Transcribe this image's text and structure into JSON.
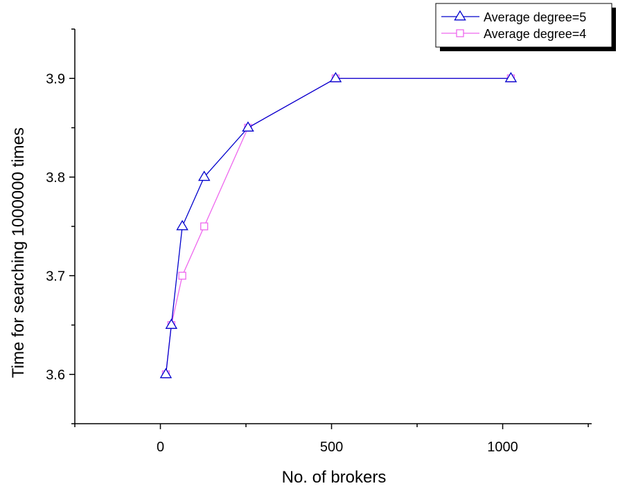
{
  "chart_data": {
    "type": "line",
    "title": "",
    "xlabel": "No. of brokers",
    "ylabel": "Time for searching 1000000 times",
    "xlim": [
      -250,
      1260
    ],
    "ylim": [
      3.55,
      3.95
    ],
    "xticks": [
      0,
      500,
      1000
    ],
    "xtick_labels": [
      "0",
      "500",
      "1000"
    ],
    "yticks": [
      3.6,
      3.7,
      3.8,
      3.9
    ],
    "ytick_labels": [
      "3.6",
      "3.7",
      "3.8",
      "3.9"
    ],
    "grid": false,
    "legend_position": "top-right",
    "series": [
      {
        "name": "Average degree=5",
        "color": "#0000cc",
        "marker": "triangle",
        "x": [
          16,
          32,
          64,
          128,
          256,
          512,
          1024
        ],
        "y": [
          3.6,
          3.65,
          3.75,
          3.8,
          3.85,
          3.9,
          3.9
        ]
      },
      {
        "name": "Average degree=4",
        "color": "#ee66ee",
        "marker": "square",
        "x": [
          16,
          32,
          64,
          128,
          256,
          512,
          1024
        ],
        "y": [
          3.6,
          3.65,
          3.7,
          3.75,
          3.85,
          3.9,
          3.9
        ]
      }
    ]
  }
}
